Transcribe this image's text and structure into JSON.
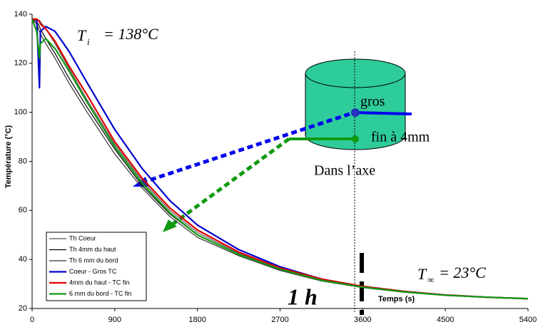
{
  "chart_data": {
    "type": "line",
    "x_label": "Temps (s)",
    "y_label": "Température (°C)",
    "x": [
      0,
      50,
      80,
      90,
      150,
      250,
      400,
      600,
      900,
      1200,
      1500,
      1800,
      2250,
      2700,
      3150,
      3600,
      4050,
      4500,
      4950,
      5400
    ],
    "xlim": [
      0,
      5400
    ],
    "xticks": [
      0,
      900,
      1800,
      2700,
      3600,
      4500,
      5400
    ],
    "ylim": [
      20,
      140
    ],
    "yticks": [
      20,
      40,
      60,
      80,
      100,
      120,
      140
    ],
    "legend": "lower left",
    "series": [
      {
        "name": "Th Coeur",
        "color": "#555555",
        "values": [
          138,
          138,
          137.5,
          137,
          134,
          128,
          118,
          105,
          87,
          72,
          60,
          51,
          42.5,
          36,
          31.5,
          28.7,
          26.8,
          25.4,
          24.6,
          24
        ]
      },
      {
        "name": "Th 4mm du haut",
        "color": "#000000",
        "values": [
          138,
          137,
          135,
          134,
          130,
          124,
          114,
          102,
          85,
          70,
          58.5,
          50,
          42,
          35.8,
          31.4,
          28.6,
          26.7,
          25.4,
          24.5,
          24
        ]
      },
      {
        "name": "Th 6 mm du bord",
        "color": "#333333",
        "values": [
          138,
          136,
          133,
          132,
          128,
          122,
          112,
          100,
          83,
          69,
          57.5,
          49,
          41.5,
          35.5,
          31.2,
          28.5,
          26.6,
          25.3,
          24.5,
          24
        ]
      },
      {
        "name": "Coeur - Gros TC",
        "color": "#0000cc",
        "values": [
          138,
          138,
          110,
          133,
          135,
          133,
          125,
          112,
          93,
          77,
          64,
          54,
          44,
          37,
          32,
          29,
          27,
          25.5,
          24.6,
          24
        ]
      },
      {
        "name": "4mm du haut - TC fin",
        "color": "#e00000",
        "values": [
          138,
          138,
          137,
          136,
          134,
          129,
          119,
          107,
          88,
          73,
          61,
          52,
          43,
          36.5,
          32,
          29,
          27,
          25.5,
          24.6,
          24
        ]
      },
      {
        "name": "6 mm du bord - TC fin",
        "color": "#119911",
        "values": [
          138,
          133,
          122,
          128,
          130,
          126,
          117,
          104,
          86,
          71,
          59,
          50,
          42,
          36,
          31.5,
          28.7,
          26.8,
          25.4,
          24.6,
          24
        ]
      }
    ],
    "annotations": {
      "ti_symbol": "T",
      "ti_sub": "i",
      "ti_value": "= 138°C",
      "tinf_symbol": "T",
      "tinf_sub": "∞",
      "tinf_value": "= 23°C",
      "hour": "1 h",
      "gros": "gros",
      "fin": "fin à 4mm",
      "axe": "Dans l’axe"
    }
  }
}
